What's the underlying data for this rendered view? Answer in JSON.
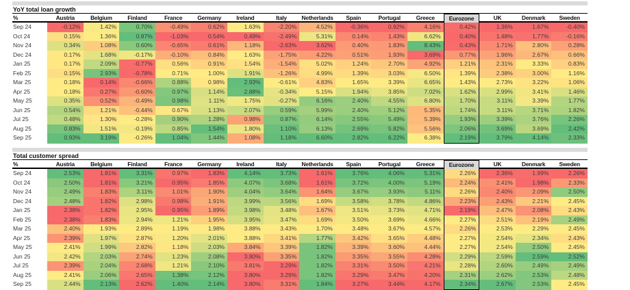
{
  "colors": {
    "heat_min": "#F8696B",
    "heat_mid": "#FFEB84",
    "heat_max": "#63BE7B",
    "band_gray": "#DBDBDB",
    "highlight_header_bg": "#D9D9D9"
  },
  "chart_data": [
    {
      "type": "heatmap",
      "title": "YoY total loan growth",
      "unit": "%",
      "color_scale": "per-column min(red) / median(yellow) / max(green)",
      "highlighted_column": "Eurozone",
      "columns": [
        "Austria",
        "Belgium",
        "Finland",
        "France",
        "Germany",
        "Ireland",
        "Italy",
        "Netherlands",
        "Spain",
        "Portugal",
        "Greece",
        "Eurozone",
        "UK",
        "Denmark",
        "Sweden"
      ],
      "rows": [
        "Sep 24",
        "Oct 24",
        "Nov 24",
        "Dec 24",
        "Jan 25",
        "Feb 25",
        "Mar 25",
        "Apr 25",
        "May 25",
        "Jun 25",
        "Jul 25",
        "Aug 25",
        "Sep 25"
      ],
      "values": [
        [
          -0.12,
          1.42,
          0.7,
          -0.49,
          0.62,
          1.63,
          -2.2,
          4.52,
          -0.36,
          0.92,
          4.16,
          0.42,
          1.36,
          1.67,
          -0.4
        ],
        [
          0.15,
          1.36,
          0.87,
          -1.03,
          0.54,
          0.49,
          -2.49,
          5.31,
          0.14,
          1.43,
          6.62,
          0.4,
          1.48,
          1.77,
          -0.16
        ],
        [
          0.34,
          1.08,
          0.6,
          -0.65,
          0.61,
          1.18,
          -2.63,
          3.62,
          0.4,
          1.83,
          8.43,
          0.43,
          1.71,
          2.8,
          0.28
        ],
        [
          0.17,
          1.68,
          -0.17,
          -0.1,
          0.84,
          1.63,
          -1.75,
          4.22,
          0.51,
          1.93,
          3.69,
          0.77,
          1.96,
          2.67,
          0.66
        ],
        [
          0.17,
          2.09,
          -0.77,
          0.56,
          0.91,
          1.54,
          -1.54,
          5.02,
          1.24,
          2.7,
          4.92,
          1.21,
          2.31,
          3.33,
          0.83
        ],
        [
          0.15,
          2.93,
          -0.78,
          0.71,
          1.0,
          1.91,
          -1.26,
          4.99,
          1.39,
          3.03,
          6.5,
          1.39,
          2.38,
          3.0,
          1.16
        ],
        [
          0.18,
          0.14,
          -0.66,
          0.88,
          0.98,
          2.93,
          -0.61,
          4.83,
          1.65,
          3.39,
          6.65,
          1.43,
          2.73,
          3.22,
          1.06
        ],
        [
          0.18,
          0.27,
          -0.6,
          0.97,
          1.14,
          2.88,
          -0.34,
          5.15,
          1.94,
          3.85,
          7.02,
          1.62,
          2.99,
          3.41,
          1.46
        ],
        [
          0.35,
          0.52,
          -0.49,
          0.98,
          1.11,
          1.75,
          -0.27,
          6.16,
          2.4,
          4.55,
          6.8,
          1.7,
          3.11,
          3.39,
          1.77
        ],
        [
          0.54,
          1.21,
          -0.44,
          0.67,
          1.13,
          2.07,
          0.59,
          5.99,
          2.4,
          5.12,
          5.35,
          1.74,
          3.11,
          3.71,
          1.82
        ],
        [
          0.48,
          1.3,
          -0.28,
          0.9,
          1.28,
          0.98,
          0.87,
          6.14,
          2.55,
          5.49,
          5.39,
          1.93,
          3.39,
          3.76,
          2.26
        ],
        [
          0.83,
          1.51,
          -0.19,
          0.85,
          1.54,
          1.8,
          1.1,
          6.13,
          2.69,
          5.82,
          5.56,
          2.06,
          3.69,
          3.69,
          2.42
        ],
        [
          0.93,
          3.19,
          -0.26,
          1.04,
          1.44,
          1.08,
          1.18,
          6.6,
          2.82,
          6.22,
          6.38,
          2.19,
          3.79,
          4.14,
          2.33
        ]
      ]
    },
    {
      "type": "heatmap",
      "title": "Total customer spread",
      "unit": "%",
      "color_scale": "per-column min(red) / median(yellow) / max(green)",
      "highlighted_column": "Eurozone",
      "columns": [
        "Austria",
        "Belgium",
        "Finland",
        "France",
        "Germany",
        "Ireland",
        "Italy",
        "Netherlands",
        "Spain",
        "Portugal",
        "Greece",
        "Eurozone",
        "UK",
        "Denmark",
        "Sweden"
      ],
      "rows": [
        "Sep 24",
        "Oct 24",
        "Nov 24",
        "Dec 24",
        "Jan 25",
        "Feb 25",
        "Mar 25",
        "Apr 25",
        "May 25",
        "Jun 25",
        "Jul 25",
        "Aug 25",
        "Sep 25"
      ],
      "values": [
        [
          2.53,
          1.81,
          3.31,
          0.97,
          1.83,
          4.14,
          3.73,
          1.61,
          3.76,
          4.06,
          5.31,
          2.26,
          2.36,
          1.99,
          2.26
        ],
        [
          2.5,
          1.81,
          3.21,
          0.95,
          1.85,
          4.07,
          3.68,
          1.61,
          3.72,
          4.0,
          5.19,
          2.24,
          2.41,
          1.98,
          2.33
        ],
        [
          2.49,
          1.83,
          3.11,
          1.01,
          1.9,
          4.04,
          3.64,
          1.64,
          3.67,
          3.93,
          5.11,
          2.26,
          2.4,
          2.09,
          2.5
        ],
        [
          2.48,
          1.82,
          2.98,
          0.98,
          1.91,
          3.99,
          3.56,
          1.69,
          3.58,
          3.78,
          4.86,
          2.23,
          2.43,
          2.21,
          2.45
        ],
        [
          2.38,
          1.82,
          2.95,
          0.95,
          1.89,
          3.98,
          3.48,
          1.67,
          3.51,
          3.73,
          4.71,
          2.19,
          2.47,
          2.08,
          2.43
        ],
        [
          2.38,
          1.83,
          2.94,
          1.21,
          1.95,
          3.95,
          3.47,
          1.69,
          3.5,
          3.69,
          4.66,
          2.27,
          2.51,
          2.19,
          2.49
        ],
        [
          2.4,
          1.93,
          2.89,
          1.19,
          1.98,
          3.88,
          3.43,
          1.7,
          3.48,
          3.67,
          4.57,
          2.26,
          2.53,
          2.29,
          2.45
        ],
        [
          2.39,
          1.97,
          2.87,
          1.2,
          2.01,
          3.88,
          3.41,
          1.77,
          3.42,
          3.65,
          4.48,
          2.27,
          2.54,
          2.34,
          2.43
        ],
        [
          2.41,
          1.99,
          2.82,
          1.18,
          2.03,
          3.84,
          3.39,
          1.82,
          3.39,
          3.6,
          4.44,
          2.27,
          2.54,
          2.5,
          2.45
        ],
        [
          2.42,
          2.03,
          2.74,
          1.23,
          2.08,
          3.8,
          3.35,
          1.82,
          3.35,
          3.55,
          4.28,
          2.29,
          2.59,
          2.59,
          2.52
        ],
        [
          2.39,
          2.04,
          2.68,
          1.21,
          2.1,
          3.81,
          3.29,
          1.82,
          3.31,
          3.5,
          4.21,
          2.28,
          2.6,
          2.49,
          2.49
        ],
        [
          2.41,
          2.06,
          2.65,
          1.38,
          2.12,
          3.8,
          3.29,
          1.82,
          3.29,
          3.47,
          4.2,
          2.31,
          2.62,
          2.53,
          2.48
        ],
        [
          2.44,
          2.13,
          2.62,
          1.4,
          2.14,
          3.8,
          3.31,
          1.84,
          3.27,
          3.44,
          4.17,
          2.34,
          2.67,
          2.53,
          2.45
        ]
      ]
    }
  ]
}
